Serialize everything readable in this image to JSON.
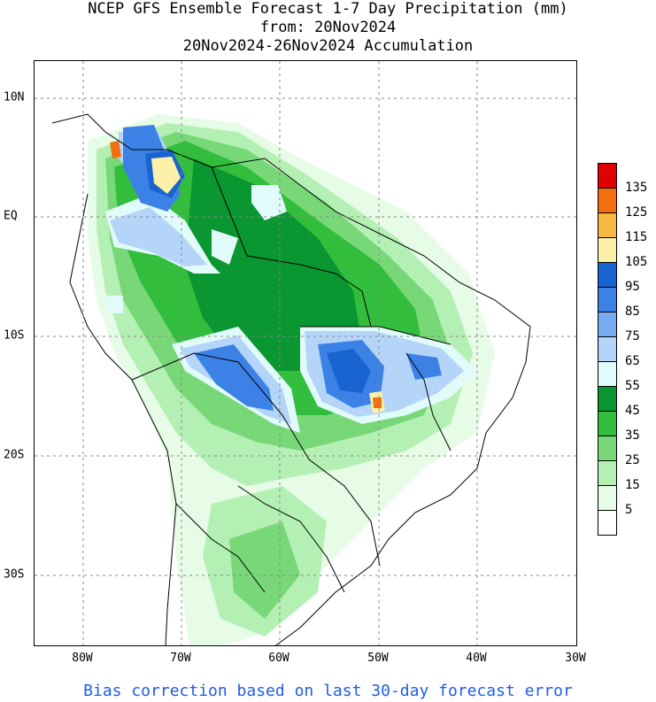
{
  "title": {
    "line1": "NCEP GFS Ensemble Forecast 1-7 Day Precipitation (mm)",
    "line2": "from: 20Nov2024",
    "line3": "20Nov2024-26Nov2024 Accumulation"
  },
  "axes": {
    "x_ticks": [
      "80W",
      "70W",
      "60W",
      "50W",
      "40W",
      "30W"
    ],
    "y_ticks": [
      "10N",
      "EQ",
      "10S",
      "20S",
      "30S"
    ]
  },
  "legend": {
    "labels": [
      "135",
      "125",
      "115",
      "105",
      "95",
      "85",
      "75",
      "65",
      "55",
      "45",
      "35",
      "25",
      "15",
      "5"
    ],
    "colors": [
      "#e00000",
      "#f26f0f",
      "#f5b840",
      "#fcf0a8",
      "#1a64d2",
      "#3c82e6",
      "#78aaf0",
      "#b4d4f8",
      "#e1fafa",
      "#0a9630",
      "#32be3c",
      "#78d878",
      "#b4f0b4",
      "#e6fce6",
      "#ffffff"
    ]
  },
  "footer": "Bias correction based on last 30-day forecast error"
}
